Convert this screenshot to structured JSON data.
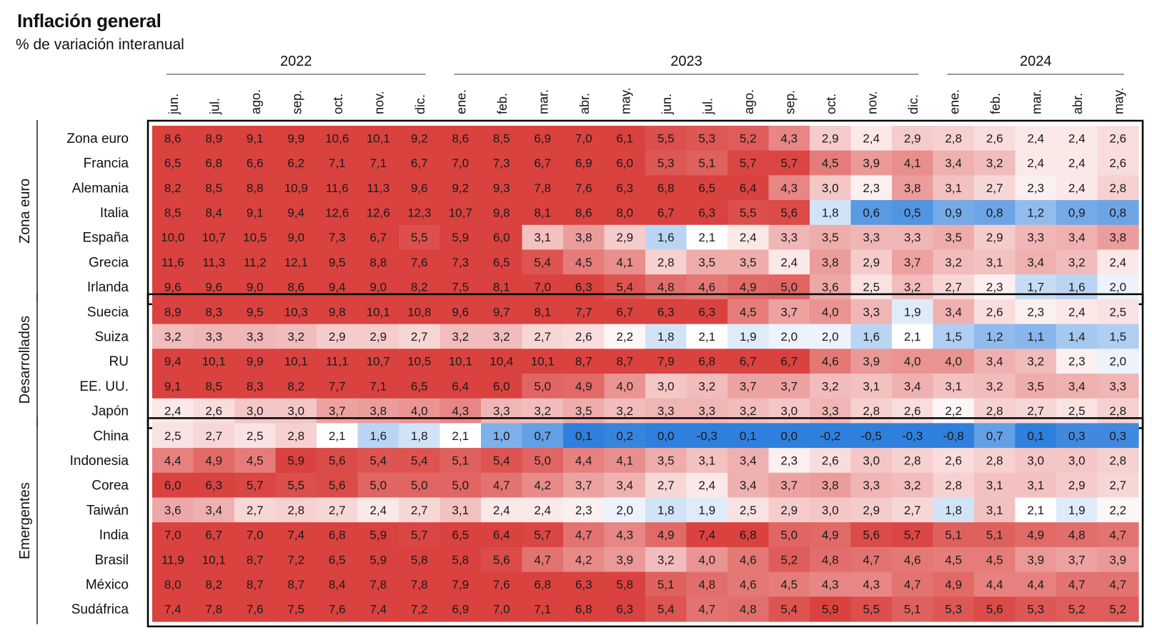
{
  "title": "Inflación general",
  "subtitle": "% de variación interanual",
  "chart_data": {
    "type": "heatmap",
    "years": [
      {
        "label": "2022",
        "from": 0,
        "to": 6
      },
      {
        "label": "2023",
        "from": 7,
        "to": 18
      },
      {
        "label": "2024",
        "from": 19,
        "to": 23
      }
    ],
    "months": [
      "jun.",
      "jul.",
      "ago.",
      "sep.",
      "oct.",
      "nov.",
      "dic.",
      "ene.",
      "feb.",
      "mar.",
      "abr.",
      "may.",
      "jun.",
      "jul.",
      "ago.",
      "sep.",
      "oct.",
      "nov.",
      "dic.",
      "ene.",
      "feb.",
      "mar.",
      "abr.",
      "may."
    ],
    "groups": [
      {
        "name": "Zona euro",
        "rows": [
          {
            "name": "Zona euro",
            "values": [
              8.6,
              8.9,
              9.1,
              9.9,
              10.6,
              10.1,
              9.2,
              8.6,
              8.5,
              6.9,
              7.0,
              6.1,
              5.5,
              5.3,
              5.2,
              4.3,
              2.9,
              2.4,
              2.9,
              2.8,
              2.6,
              2.4,
              2.4,
              2.6
            ]
          },
          {
            "name": "Francia",
            "values": [
              6.5,
              6.8,
              6.6,
              6.2,
              7.1,
              7.1,
              6.7,
              7.0,
              7.3,
              6.7,
              6.9,
              6.0,
              5.3,
              5.1,
              5.7,
              5.7,
              4.5,
              3.9,
              4.1,
              3.4,
              3.2,
              2.4,
              2.4,
              2.6
            ]
          },
          {
            "name": "Alemania",
            "values": [
              8.2,
              8.5,
              8.8,
              10.9,
              11.6,
              11.3,
              9.6,
              9.2,
              9.3,
              7.8,
              7.6,
              6.3,
              6.8,
              6.5,
              6.4,
              4.3,
              3.0,
              2.3,
              3.8,
              3.1,
              2.7,
              2.3,
              2.4,
              2.8
            ]
          },
          {
            "name": "Italia",
            "values": [
              8.5,
              8.4,
              9.1,
              9.4,
              12.6,
              12.6,
              12.3,
              10.7,
              9.8,
              8.1,
              8.6,
              8.0,
              6.7,
              6.3,
              5.5,
              5.6,
              1.8,
              0.6,
              0.5,
              0.9,
              0.8,
              1.2,
              0.9,
              0.8
            ]
          },
          {
            "name": "España",
            "values": [
              10.0,
              10.7,
              10.5,
              9.0,
              7.3,
              6.7,
              5.5,
              5.9,
              6.0,
              3.1,
              3.8,
              2.9,
              1.6,
              2.1,
              2.4,
              3.3,
              3.5,
              3.3,
              3.3,
              3.5,
              2.9,
              3.3,
              3.4,
              3.8
            ]
          },
          {
            "name": "Grecia",
            "values": [
              11.6,
              11.3,
              11.2,
              12.1,
              9.5,
              8.8,
              7.6,
              7.3,
              6.5,
              5.4,
              4.5,
              4.1,
              2.8,
              3.5,
              3.5,
              2.4,
              3.8,
              2.9,
              3.7,
              3.2,
              3.1,
              3.4,
              3.2,
              2.4
            ]
          },
          {
            "name": "Irlanda",
            "values": [
              9.6,
              9.6,
              9.0,
              8.6,
              9.4,
              9.0,
              8.2,
              7.5,
              8.1,
              7.0,
              6.3,
              5.4,
              4.8,
              4.6,
              4.9,
              5.0,
              3.6,
              2.5,
              3.2,
              2.7,
              2.3,
              1.7,
              1.6,
              2.0
            ]
          }
        ]
      },
      {
        "name": "Desarrollados",
        "rows": [
          {
            "name": "Suecia",
            "values": [
              8.9,
              8.3,
              9.5,
              10.3,
              9.8,
              10.1,
              10.8,
              9.6,
              9.7,
              8.1,
              7.7,
              6.7,
              6.3,
              6.3,
              4.5,
              3.7,
              4.0,
              3.3,
              1.9,
              3.4,
              2.6,
              2.3,
              2.4,
              2.5
            ]
          },
          {
            "name": "Suiza",
            "values": [
              3.2,
              3.3,
              3.3,
              3.2,
              2.9,
              2.9,
              2.7,
              3.2,
              3.2,
              2.7,
              2.6,
              2.2,
              1.8,
              2.1,
              1.9,
              2.0,
              2.0,
              1.6,
              2.1,
              1.5,
              1.2,
              1.1,
              1.4,
              1.5
            ]
          },
          {
            "name": "RU",
            "values": [
              9.4,
              10.1,
              9.9,
              10.1,
              11.1,
              10.7,
              10.5,
              10.1,
              10.4,
              10.1,
              8.7,
              8.7,
              7.9,
              6.8,
              6.7,
              6.7,
              4.6,
              3.9,
              4.0,
              4.0,
              3.4,
              3.2,
              2.3,
              2.0
            ]
          },
          {
            "name": "EE. UU.",
            "values": [
              9.1,
              8.5,
              8.3,
              8.2,
              7.7,
              7.1,
              6.5,
              6.4,
              6.0,
              5.0,
              4.9,
              4.0,
              3.0,
              3.2,
              3.7,
              3.7,
              3.2,
              3.1,
              3.4,
              3.1,
              3.2,
              3.5,
              3.4,
              3.3
            ]
          },
          {
            "name": "Japón",
            "values": [
              2.4,
              2.6,
              3.0,
              3.0,
              3.7,
              3.8,
              4.0,
              4.3,
              3.3,
              3.2,
              3.5,
              3.2,
              3.3,
              3.3,
              3.2,
              3.0,
              3.3,
              2.8,
              2.6,
              2.2,
              2.8,
              2.7,
              2.5,
              2.8
            ]
          }
        ]
      },
      {
        "name": "Emergentes",
        "rows": [
          {
            "name": "China",
            "values": [
              2.5,
              2.7,
              2.5,
              2.8,
              2.1,
              1.6,
              1.8,
              2.1,
              1.0,
              0.7,
              0.1,
              0.2,
              0.0,
              -0.3,
              0.1,
              0.0,
              -0.2,
              -0.5,
              -0.3,
              -0.8,
              0.7,
              0.1,
              0.3,
              0.3
            ]
          },
          {
            "name": "Indonesia",
            "values": [
              4.4,
              4.9,
              4.5,
              5.9,
              5.6,
              5.4,
              5.4,
              5.1,
              5.4,
              5.0,
              4.4,
              4.1,
              3.5,
              3.1,
              3.4,
              2.3,
              2.6,
              3.0,
              2.8,
              2.6,
              2.8,
              3.0,
              3.0,
              2.8
            ]
          },
          {
            "name": "Corea",
            "values": [
              6.0,
              6.3,
              5.7,
              5.5,
              5.6,
              5.0,
              5.0,
              5.0,
              4.7,
              4.2,
              3.7,
              3.4,
              2.7,
              2.4,
              3.4,
              3.7,
              3.8,
              3.3,
              3.2,
              2.8,
              3.1,
              3.1,
              2.9,
              2.7
            ]
          },
          {
            "name": "Taiwán",
            "values": [
              3.6,
              3.4,
              2.7,
              2.8,
              2.7,
              2.4,
              2.7,
              3.1,
              2.4,
              2.4,
              2.3,
              2.0,
              1.8,
              1.9,
              2.5,
              2.9,
              3.0,
              2.9,
              2.7,
              1.8,
              3.1,
              2.1,
              1.9,
              2.2
            ]
          },
          {
            "name": "India",
            "values": [
              7.0,
              6.7,
              7.0,
              7.4,
              6.8,
              5.9,
              5.7,
              6.5,
              6.4,
              5.7,
              4.7,
              4.3,
              4.9,
              7.4,
              6.8,
              5.0,
              4.9,
              5.6,
              5.7,
              5.1,
              5.1,
              4.9,
              4.8,
              4.7
            ]
          },
          {
            "name": "Brasil",
            "values": [
              11.9,
              10.1,
              8.7,
              7.2,
              6.5,
              5.9,
              5.8,
              5.8,
              5.6,
              4.7,
              4.2,
              3.9,
              3.2,
              4.0,
              4.6,
              5.2,
              4.8,
              4.7,
              4.6,
              4.5,
              4.5,
              3.9,
              3.7,
              3.9
            ]
          },
          {
            "name": "México",
            "values": [
              8.0,
              8.2,
              8.7,
              8.7,
              8.4,
              7.8,
              7.8,
              7.9,
              7.6,
              6.8,
              6.3,
              5.8,
              5.1,
              4.8,
              4.6,
              4.5,
              4.3,
              4.3,
              4.7,
              4.9,
              4.4,
              4.4,
              4.7,
              4.7
            ]
          },
          {
            "name": "Sudáfrica",
            "values": [
              7.4,
              7.8,
              7.6,
              7.5,
              7.6,
              7.4,
              7.2,
              6.9,
              7.0,
              7.1,
              6.8,
              6.3,
              5.4,
              4.7,
              4.8,
              5.4,
              5.9,
              5.5,
              5.1,
              5.3,
              5.6,
              5.3,
              5.2,
              5.2
            ]
          }
        ]
      }
    ],
    "decimal_separator": ",",
    "colors": {
      "high": "#d9423f",
      "mid": "#ffffff",
      "low": "#2f7fdc",
      "border": "#000000"
    }
  }
}
